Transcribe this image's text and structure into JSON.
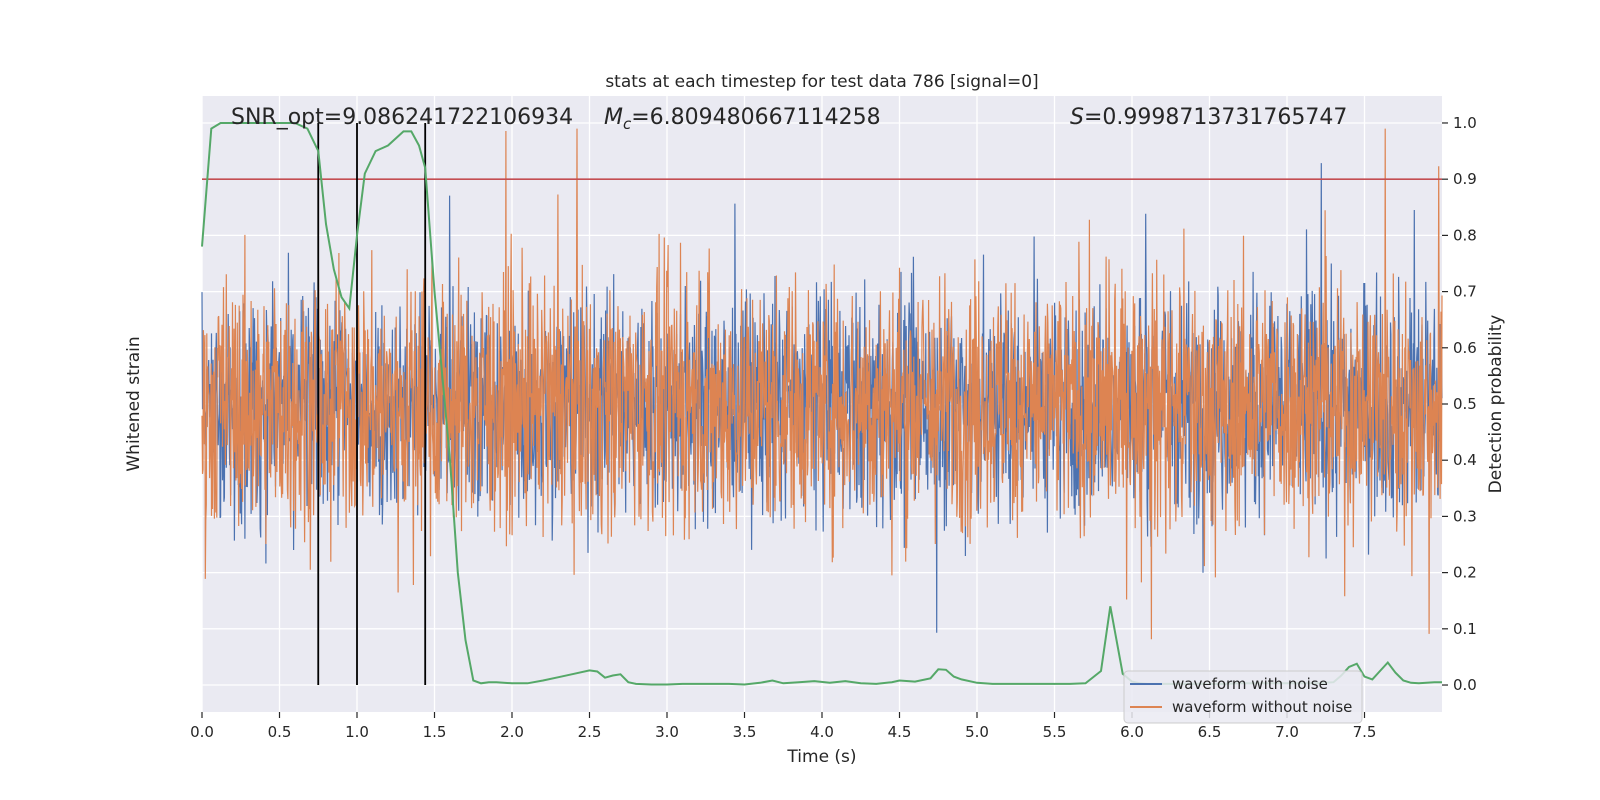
{
  "chart_data": {
    "type": "line",
    "title": "stats at each timestep for test data 786 [signal=0]",
    "xlabel": "Time (s)",
    "ylabel_left": "Whitened strain",
    "ylabel_right": "Detection probability",
    "xlim": [
      0,
      8.0
    ],
    "ylim_right": [
      -0.048,
      1.048
    ],
    "xticks": [
      0.0,
      0.5,
      1.0,
      1.5,
      2.0,
      2.5,
      3.0,
      3.5,
      4.0,
      4.5,
      5.0,
      5.5,
      6.0,
      6.5,
      7.0,
      7.5
    ],
    "xtick_labels": [
      "0.0",
      "0.5",
      "1.0",
      "1.5",
      "2.0",
      "2.5",
      "3.0",
      "3.5",
      "4.0",
      "4.5",
      "5.0",
      "5.5",
      "6.0",
      "6.5",
      "7.0",
      "7.5"
    ],
    "yticks_right": [
      0.0,
      0.1,
      0.2,
      0.3,
      0.4,
      0.5,
      0.6,
      0.7,
      0.8,
      0.9,
      1.0
    ],
    "ytick_labels_right": [
      "0.0",
      "0.1",
      "0.2",
      "0.3",
      "0.4",
      "0.5",
      "0.6",
      "0.7",
      "0.8",
      "0.9",
      "1.0"
    ],
    "grid": true,
    "background": "#eaeaf2",
    "annotations": {
      "snr": "SNR_opt=9.086241722106934",
      "mc_symbol": "M",
      "mc_sub": "c",
      "mc_value": "=6.809480667114258",
      "s_symbol": "S",
      "s_value": "=0.9998713731765747"
    },
    "threshold": {
      "value": 0.9,
      "color": "#c44e52"
    },
    "vlines": [
      0.75,
      1.0,
      1.44
    ],
    "vline_color": "#000000",
    "series": [
      {
        "name": "waveform with noise",
        "color": "#4c72b0",
        "axis": "left",
        "note_values": "dense noise trace, drawn beneath orange trace"
      },
      {
        "name": "waveform without noise",
        "color": "#dd8452",
        "axis": "left",
        "value_range_right_units": [
          0.0,
          1.0
        ]
      },
      {
        "name": "detection probability",
        "color": "#55a868",
        "axis": "right",
        "x": [
          0.0,
          0.06,
          0.12,
          0.25,
          0.4,
          0.5,
          0.6,
          0.68,
          0.75,
          0.8,
          0.85,
          0.9,
          0.95,
          1.0,
          1.05,
          1.12,
          1.2,
          1.3,
          1.35,
          1.4,
          1.44,
          1.5,
          1.55,
          1.6,
          1.65,
          1.7,
          1.75,
          1.8,
          1.85,
          1.9,
          2.0,
          2.1,
          2.2,
          2.3,
          2.4,
          2.5,
          2.55,
          2.6,
          2.65,
          2.7,
          2.75,
          2.8,
          2.9,
          3.0,
          3.1,
          3.2,
          3.3,
          3.4,
          3.5,
          3.6,
          3.68,
          3.75,
          3.85,
          3.95,
          4.05,
          4.15,
          4.25,
          4.35,
          4.45,
          4.5,
          4.6,
          4.7,
          4.75,
          4.8,
          4.85,
          4.9,
          5.0,
          5.1,
          5.2,
          5.3,
          5.4,
          5.5,
          5.6,
          5.7,
          5.8,
          5.86,
          5.94,
          6.0,
          6.05,
          6.1,
          6.2,
          6.3,
          6.4,
          6.5,
          6.6,
          6.7,
          6.8,
          6.9,
          7.0,
          7.1,
          7.2,
          7.3,
          7.35,
          7.4,
          7.45,
          7.5,
          7.55,
          7.6,
          7.65,
          7.7,
          7.75,
          7.8,
          7.85,
          7.9,
          7.95,
          8.0
        ],
        "y": [
          0.78,
          0.99,
          1.0,
          1.0,
          1.0,
          1.0,
          1.0,
          0.99,
          0.95,
          0.82,
          0.74,
          0.69,
          0.67,
          0.8,
          0.91,
          0.95,
          0.96,
          0.985,
          0.985,
          0.96,
          0.92,
          0.7,
          0.55,
          0.4,
          0.2,
          0.08,
          0.008,
          0.003,
          0.005,
          0.005,
          0.003,
          0.003,
          0.008,
          0.014,
          0.02,
          0.026,
          0.024,
          0.013,
          0.017,
          0.019,
          0.005,
          0.002,
          0.001,
          0.001,
          0.002,
          0.002,
          0.002,
          0.002,
          0.001,
          0.004,
          0.008,
          0.003,
          0.005,
          0.007,
          0.004,
          0.007,
          0.003,
          0.002,
          0.005,
          0.008,
          0.006,
          0.012,
          0.028,
          0.027,
          0.015,
          0.01,
          0.004,
          0.002,
          0.002,
          0.002,
          0.002,
          0.002,
          0.002,
          0.003,
          0.025,
          0.14,
          0.02,
          0.006,
          0.003,
          0.002,
          0.002,
          0.002,
          0.002,
          0.002,
          0.002,
          0.003,
          0.003,
          0.003,
          0.003,
          0.003,
          0.003,
          0.005,
          0.017,
          0.032,
          0.038,
          0.015,
          0.01,
          0.025,
          0.04,
          0.022,
          0.008,
          0.004,
          0.003,
          0.004,
          0.005,
          0.005
        ]
      }
    ],
    "legend": {
      "placement": "lower-right",
      "entries": [
        "waveform with noise",
        "waveform without noise"
      ]
    }
  }
}
